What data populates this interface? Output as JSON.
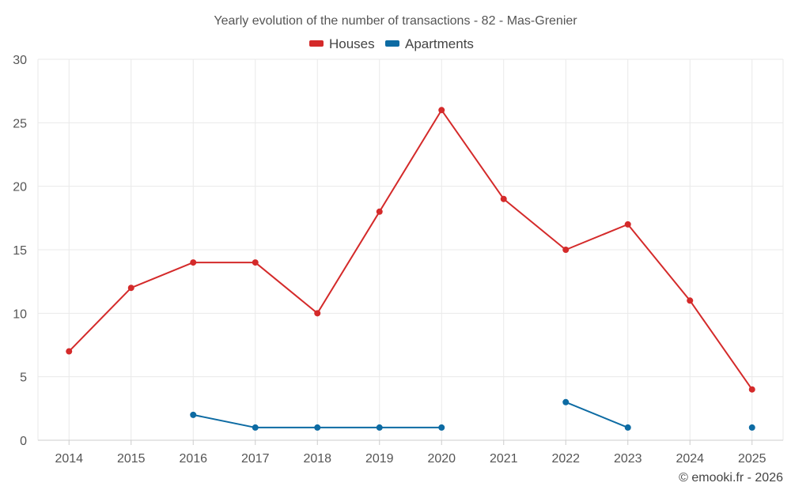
{
  "chart_data": {
    "type": "line",
    "title": "Yearly evolution of the number of transactions - 82 - Mas-Grenier",
    "categories": [
      "2014",
      "2015",
      "2016",
      "2017",
      "2018",
      "2019",
      "2020",
      "2021",
      "2022",
      "2023",
      "2024",
      "2025"
    ],
    "ylim": [
      0,
      30
    ],
    "yticks": [
      0,
      5,
      10,
      15,
      20,
      25,
      30
    ],
    "xlabel": "",
    "ylabel": "",
    "grid": true,
    "legend_position": "top-center",
    "series": [
      {
        "name": "Houses",
        "color": "#d42a2a",
        "values": [
          7,
          12,
          14,
          14,
          10,
          18,
          26,
          19,
          15,
          17,
          11,
          4
        ]
      },
      {
        "name": "Apartments",
        "color": "#0d6ba3",
        "values": [
          null,
          null,
          2,
          1,
          1,
          1,
          1,
          null,
          3,
          1,
          null,
          1
        ]
      }
    ]
  },
  "credit": "© emooki.fr - 2026"
}
